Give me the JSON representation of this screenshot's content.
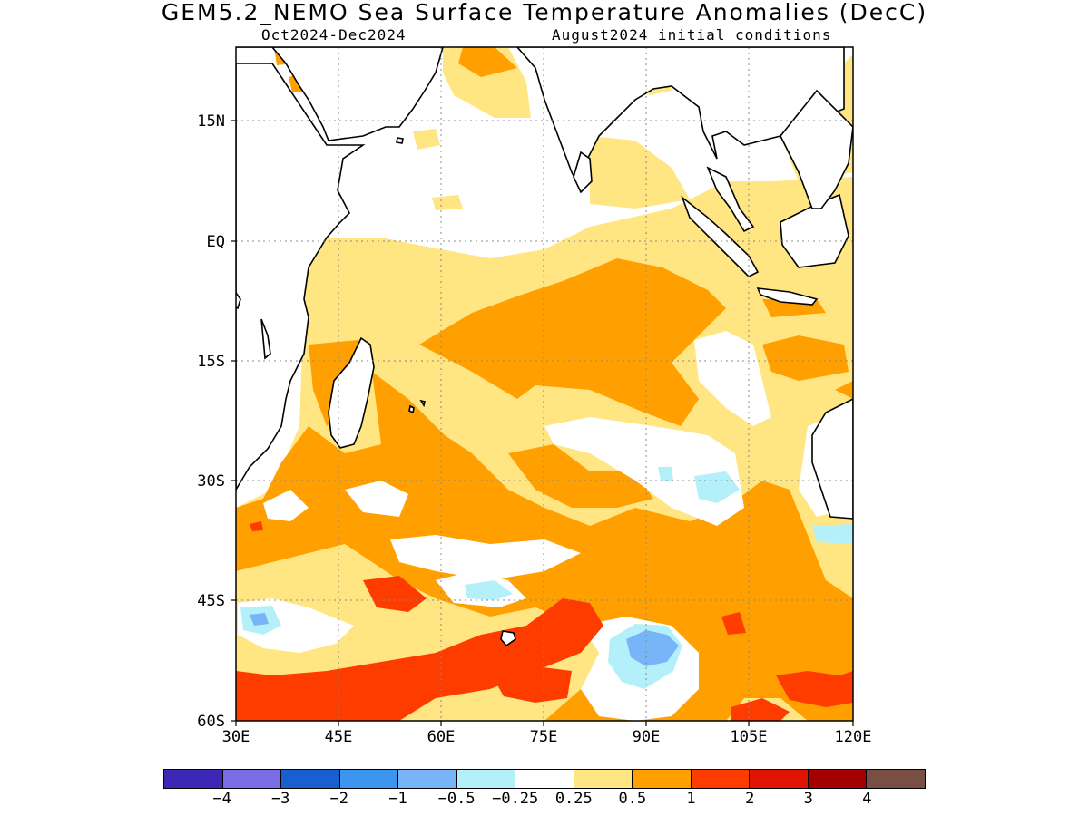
{
  "title": "GEM5.2_NEMO Sea Surface Temperature Anomalies (DecC)",
  "subtitle_left": "Oct2024-Dec2024",
  "subtitle_right": "August2024 initial conditions",
  "map": {
    "region": "Indian Ocean",
    "lon_range": [
      30,
      120
    ],
    "lat_range": [
      -60,
      24
    ],
    "x_ticks": [
      "30E",
      "45E",
      "60E",
      "75E",
      "90E",
      "105E",
      "120E"
    ],
    "y_ticks": [
      "15N",
      "EQ",
      "15S",
      "30S",
      "45S",
      "60S"
    ],
    "grid": true,
    "land_color": "#ffffff",
    "coastline_color": "#000000"
  },
  "colorbar": {
    "colors": [
      "#3c28b4",
      "#7a6de6",
      "#1a5fd0",
      "#3c96f0",
      "#78b4f8",
      "#b4f0fa",
      "#ffffff",
      "#ffe682",
      "#ffa000",
      "#ff3c00",
      "#e11400",
      "#a50000",
      "#7a4f43"
    ],
    "labels": [
      "-4",
      "-3",
      "-2",
      "-1",
      "-0.5",
      "-0.25",
      "0.25",
      "0.5",
      "1",
      "2",
      "3",
      "4"
    ]
  }
}
